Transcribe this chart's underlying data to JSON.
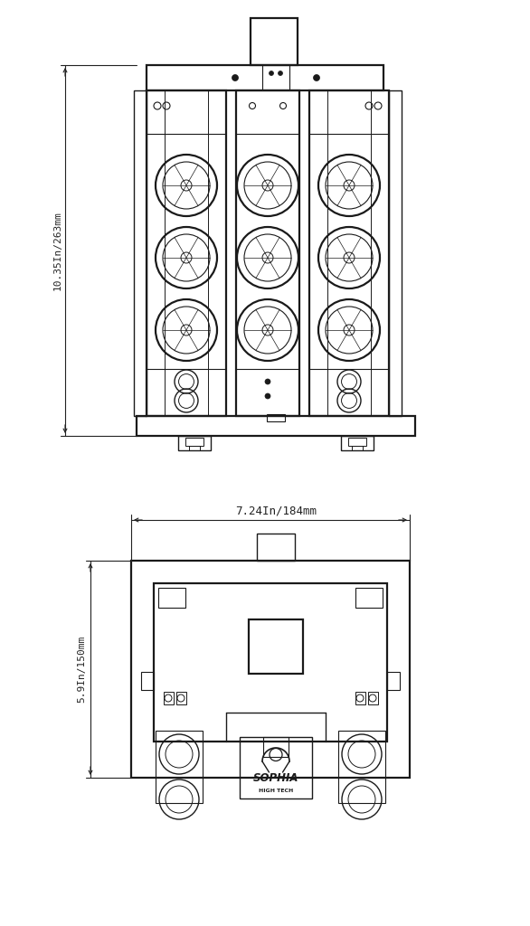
{
  "bg_color": "#ffffff",
  "line_color": "#1a1a1a",
  "dim_color": "#222222",
  "dim1_text": "10.35In/263mm",
  "dim2_text": "7.24In/184mm",
  "dim3_text": "5.9In/150mm",
  "sophia_text": "SOPHIA",
  "sophia_sub": "HIGH TECH",
  "lw": 1.0,
  "lw2": 1.6
}
